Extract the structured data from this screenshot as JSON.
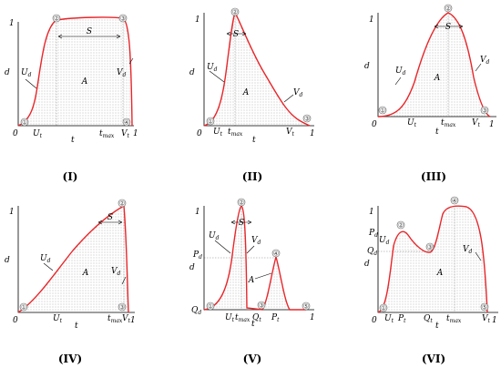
{
  "panels": [
    {
      "label": "(I)",
      "y_axis": "d",
      "x_axis": "t",
      "x_ticks": [
        {
          "text": "0"
        },
        {
          "text": "U",
          "sub": "t"
        },
        {
          "text": "t",
          "sub": "max"
        },
        {
          "text": "V",
          "sub": "t"
        },
        {
          "text": "1"
        }
      ],
      "y_ticks": [
        {
          "text": "1"
        }
      ],
      "region_label": "A",
      "span_label": "S",
      "rate_labels": [
        {
          "text": "U",
          "sub": "d"
        },
        {
          "text": "V",
          "sub": "d"
        }
      ],
      "points": [
        "①",
        "②",
        "③",
        "④"
      ]
    },
    {
      "label": "(II)",
      "y_axis": "d",
      "x_axis": "t",
      "x_ticks": [
        {
          "text": "0"
        },
        {
          "text": "U",
          "sub": "t"
        },
        {
          "text": "t",
          "sub": "max"
        },
        {
          "text": "V",
          "sub": "t"
        },
        {
          "text": "1"
        }
      ],
      "y_ticks": [
        {
          "text": "1"
        }
      ],
      "region_label": "A",
      "span_label": "S",
      "rate_labels": [
        {
          "text": "U",
          "sub": "d"
        },
        {
          "text": "V",
          "sub": "d"
        }
      ],
      "points": [
        "①",
        "②",
        "③"
      ]
    },
    {
      "label": "(III)",
      "y_axis": "d",
      "x_axis": "t",
      "x_ticks": [
        {
          "text": "0"
        },
        {
          "text": "U",
          "sub": "t"
        },
        {
          "text": "t",
          "sub": "max"
        },
        {
          "text": "V",
          "sub": "t"
        },
        {
          "text": "1"
        }
      ],
      "y_ticks": [
        {
          "text": "1"
        }
      ],
      "region_label": "A",
      "span_label": "S",
      "rate_labels": [
        {
          "text": "U",
          "sub": "d"
        },
        {
          "text": "V",
          "sub": "d"
        }
      ],
      "points": [
        "①",
        "②",
        "③"
      ]
    },
    {
      "label": "(IV)",
      "y_axis": "d",
      "x_axis": "t",
      "x_ticks": [
        {
          "text": "0"
        },
        {
          "text": "U",
          "sub": "t"
        },
        {
          "text": "t",
          "sub": "max"
        },
        {
          "text": "V",
          "sub": "t"
        },
        {
          "text": "1"
        }
      ],
      "y_ticks": [
        {
          "text": "1"
        }
      ],
      "region_label": "A",
      "span_label": "S",
      "rate_labels": [
        {
          "text": "U",
          "sub": "d"
        },
        {
          "text": "V",
          "sub": "d"
        }
      ],
      "points": [
        "①",
        "②",
        "③"
      ]
    },
    {
      "label": "(V)",
      "y_axis": "d",
      "x_axis": "t",
      "x_ticks": [
        {
          "text": "U",
          "sub": "t"
        },
        {
          "text": "t",
          "sub": "max"
        },
        {
          "text": "Q",
          "sub": "t"
        },
        {
          "text": "P",
          "sub": "t"
        },
        {
          "text": "1"
        }
      ],
      "y_ticks": [
        {
          "text": "1"
        },
        {
          "text": "P",
          "sub": "d"
        },
        {
          "text": "Q",
          "sub": "d"
        }
      ],
      "region_label": "A",
      "span_label": "S",
      "rate_labels": [
        {
          "text": "U",
          "sub": "d"
        },
        {
          "text": "V",
          "sub": "d"
        }
      ],
      "points": [
        "①",
        "②",
        "③",
        "④",
        "⑤"
      ]
    },
    {
      "label": "(VI)",
      "y_axis": "d",
      "x_axis": "t",
      "x_ticks": [
        {
          "text": "0"
        },
        {
          "text": "U",
          "sub": "t"
        },
        {
          "text": "P",
          "sub": "t"
        },
        {
          "text": "Q",
          "sub": "t"
        },
        {
          "text": "t",
          "sub": "max"
        },
        {
          "text": "V",
          "sub": "t"
        },
        {
          "text": "1"
        }
      ],
      "y_ticks": [
        {
          "text": "1"
        },
        {
          "text": "P",
          "sub": "d"
        },
        {
          "text": "Q",
          "sub": "d"
        }
      ],
      "region_label": "A",
      "span_label": "S",
      "rate_labels": [
        {
          "text": "U",
          "sub": "d"
        },
        {
          "text": "V",
          "sub": "d"
        }
      ],
      "points": [
        "①",
        "②",
        "③",
        "④",
        "⑤"
      ]
    }
  ]
}
